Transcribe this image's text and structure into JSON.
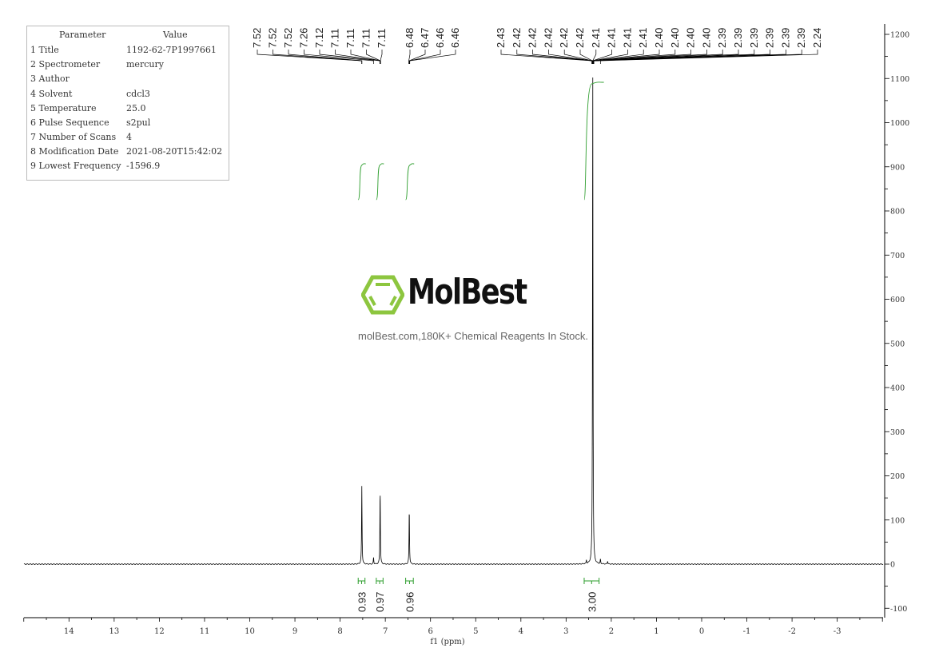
{
  "parameters": {
    "header": [
      "Parameter",
      "Value"
    ],
    "rows": [
      [
        "1 Title",
        "1192-62-7P1997661"
      ],
      [
        "2 Spectrometer",
        "mercury"
      ],
      [
        "3 Author",
        ""
      ],
      [
        "4 Solvent",
        "cdcl3"
      ],
      [
        "5 Temperature",
        "25.0"
      ],
      [
        "6 Pulse Sequence",
        "s2pul"
      ],
      [
        "7 Number of Scans",
        "4"
      ],
      [
        "8 Modification Date",
        "2021-08-20T15:42:02"
      ],
      [
        "9 Lowest Frequency",
        "-1596.9"
      ]
    ]
  },
  "watermark": {
    "logo": "MolBest",
    "tagline": "molBest.com,180K+ Chemical Reagents In Stock.",
    "color": "#8dc63f"
  },
  "chart_data": {
    "type": "line",
    "xlabel": "f1 (ppm)",
    "ylabel": "",
    "xlim": [
      15,
      -4
    ],
    "ylim": [
      -120,
      1220
    ],
    "x_ticks": [
      14,
      13,
      12,
      11,
      10,
      9,
      8,
      7,
      6,
      5,
      4,
      3,
      2,
      1,
      0,
      -1,
      -2,
      -3
    ],
    "y_ticks": [
      -100,
      0,
      100,
      200,
      300,
      400,
      500,
      600,
      700,
      800,
      900,
      1000,
      1100,
      1200
    ],
    "grid": false,
    "line_color": "#000000",
    "integral_color": "#2e9e2e",
    "peaks": [
      {
        "ppm": 7.52,
        "height": 177
      },
      {
        "ppm": 7.26,
        "height": 15
      },
      {
        "ppm": 7.115,
        "height": 170
      },
      {
        "ppm": 6.47,
        "height": 127
      },
      {
        "ppm": 2.55,
        "height": 8
      },
      {
        "ppm": 2.41,
        "height": 1115
      },
      {
        "ppm": 2.24,
        "height": 10
      },
      {
        "ppm": 2.08,
        "height": 7
      }
    ],
    "peak_label_groups": [
      {
        "labels": [
          "7.52",
          "7.52",
          "7.52",
          "7.26",
          "7.12",
          "7.11",
          "7.11",
          "7.11",
          "7.11"
        ]
      },
      {
        "labels": [
          "6.48",
          "6.47",
          "6.46",
          "6.46"
        ]
      },
      {
        "labels": [
          "2.43",
          "2.42",
          "2.42",
          "2.42",
          "2.42",
          "2.42",
          "2.41",
          "2.41",
          "2.41",
          "2.41",
          "2.40",
          "2.40",
          "2.40",
          "2.40",
          "2.39",
          "2.39",
          "2.39",
          "2.39",
          "2.39",
          "2.39",
          "2.24"
        ]
      }
    ],
    "integrals": [
      {
        "from": 7.6,
        "to": 7.45,
        "value": "0.93"
      },
      {
        "from": 7.2,
        "to": 7.05,
        "value": "0.97"
      },
      {
        "from": 6.55,
        "to": 6.38,
        "value": "0.96"
      },
      {
        "from": 2.6,
        "to": 2.27,
        "value": "3.00"
      }
    ]
  }
}
